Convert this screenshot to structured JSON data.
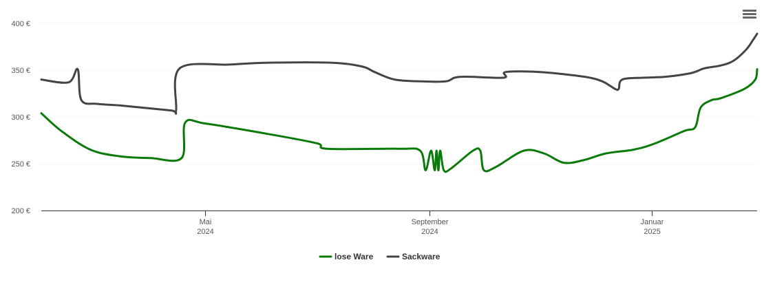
{
  "menu": {
    "icon": "hamburger-menu-icon"
  },
  "chart_data": {
    "type": "line",
    "title": "",
    "xlabel": "",
    "ylabel": "",
    "ylim": [
      200,
      400
    ],
    "y_ticks": [
      "400 €",
      "350 €",
      "300 €",
      "250 €",
      "200 €"
    ],
    "y_tick_values": [
      400,
      350,
      300,
      250,
      200
    ],
    "x_range": [
      "2024-02-01",
      "2025-02-28"
    ],
    "x_ticks": [
      {
        "date": "2024-05-01",
        "month": "Mai",
        "year": "2024"
      },
      {
        "date": "2024-09-01",
        "month": "September",
        "year": "2024"
      },
      {
        "date": "2025-01-01",
        "month": "Januar",
        "year": "2025"
      }
    ],
    "grid": true,
    "legend_position": "bottom-center",
    "series": [
      {
        "name": "lose Ware",
        "color": "#0a7a0a",
        "points": [
          [
            "2024-02-01",
            304
          ],
          [
            "2024-02-12",
            285
          ],
          [
            "2024-02-28",
            265
          ],
          [
            "2024-03-15",
            258
          ],
          [
            "2024-04-01",
            256
          ],
          [
            "2024-04-18",
            256
          ],
          [
            "2024-04-20",
            294
          ],
          [
            "2024-05-01",
            293
          ],
          [
            "2024-06-01",
            283
          ],
          [
            "2024-07-01",
            272
          ],
          [
            "2024-07-07",
            266
          ],
          [
            "2024-08-15",
            266
          ],
          [
            "2024-08-27",
            264
          ],
          [
            "2024-08-30",
            243
          ],
          [
            "2024-09-02",
            264
          ],
          [
            "2024-09-04",
            243
          ],
          [
            "2024-09-05",
            264
          ],
          [
            "2024-09-06",
            243
          ],
          [
            "2024-09-07",
            264
          ],
          [
            "2024-09-09",
            243
          ],
          [
            "2024-09-13",
            245
          ],
          [
            "2024-09-25",
            264
          ],
          [
            "2024-09-29",
            264
          ],
          [
            "2024-10-01",
            243
          ],
          [
            "2024-10-08",
            247
          ],
          [
            "2024-10-23",
            264
          ],
          [
            "2024-11-03",
            261
          ],
          [
            "2024-11-14",
            251
          ],
          [
            "2024-11-25",
            254
          ],
          [
            "2024-12-07",
            261
          ],
          [
            "2024-12-22",
            265
          ],
          [
            "2025-01-02",
            271
          ],
          [
            "2025-01-19",
            285
          ],
          [
            "2025-01-25",
            289
          ],
          [
            "2025-01-28",
            310
          ],
          [
            "2025-02-03",
            318
          ],
          [
            "2025-02-08",
            320
          ],
          [
            "2025-02-21",
            330
          ],
          [
            "2025-02-27",
            340
          ],
          [
            "2025-02-28",
            351
          ]
        ]
      },
      {
        "name": "Sackware",
        "color": "#434348",
        "points": [
          [
            "2024-02-01",
            340
          ],
          [
            "2024-02-16",
            337
          ],
          [
            "2024-02-21",
            351
          ],
          [
            "2024-02-23",
            318
          ],
          [
            "2024-03-03",
            314
          ],
          [
            "2024-03-17",
            312
          ],
          [
            "2024-04-12",
            307
          ],
          [
            "2024-04-15",
            307
          ],
          [
            "2024-04-17",
            352
          ],
          [
            "2024-05-15",
            356
          ],
          [
            "2024-06-05",
            358
          ],
          [
            "2024-07-09",
            358
          ],
          [
            "2024-07-26",
            354
          ],
          [
            "2024-08-02",
            348
          ],
          [
            "2024-08-13",
            340
          ],
          [
            "2024-08-28",
            338
          ],
          [
            "2024-09-10",
            338
          ],
          [
            "2024-09-15",
            342
          ],
          [
            "2024-09-22",
            343
          ],
          [
            "2024-10-12",
            342
          ],
          [
            "2024-10-13",
            348
          ],
          [
            "2024-11-01",
            348
          ],
          [
            "2024-11-25",
            343
          ],
          [
            "2024-12-05",
            338
          ],
          [
            "2024-12-12",
            330
          ],
          [
            "2024-12-14",
            330
          ],
          [
            "2024-12-16",
            340
          ],
          [
            "2024-12-28",
            342
          ],
          [
            "2025-01-09",
            343
          ],
          [
            "2025-01-23",
            347
          ],
          [
            "2025-01-30",
            352
          ],
          [
            "2025-02-08",
            355
          ],
          [
            "2025-02-15",
            360
          ],
          [
            "2025-02-22",
            372
          ],
          [
            "2025-02-26",
            383
          ],
          [
            "2025-02-28",
            389
          ]
        ]
      }
    ]
  }
}
